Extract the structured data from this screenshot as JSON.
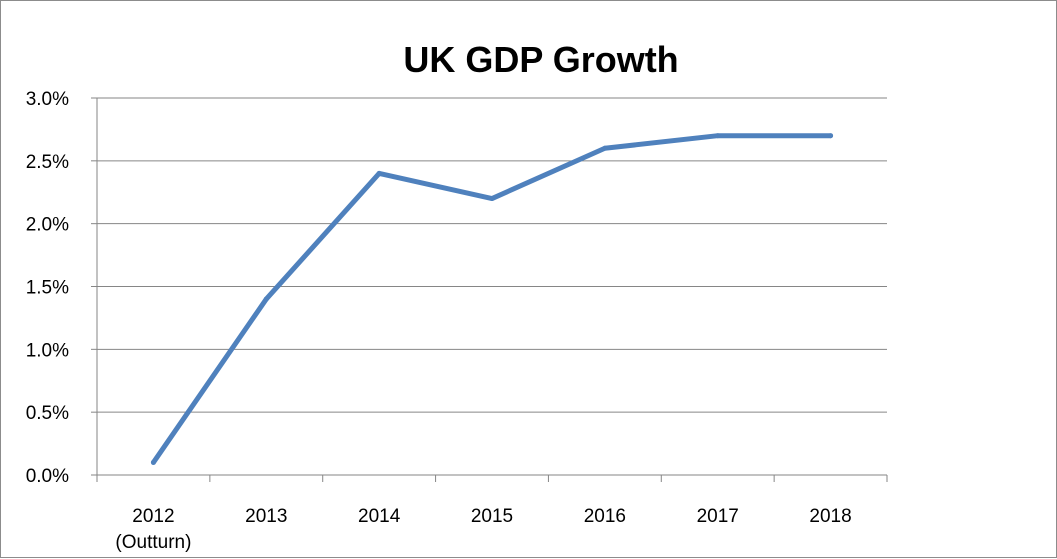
{
  "chart_data": {
    "type": "line",
    "title": "UK GDP Growth",
    "xlabel": "",
    "ylabel": "",
    "categories": [
      [
        "2012",
        "(Outturn)"
      ],
      [
        "2013"
      ],
      [
        "2014"
      ],
      [
        "2015"
      ],
      [
        "2016"
      ],
      [
        "2017"
      ],
      [
        "2018"
      ]
    ],
    "series": [
      {
        "values": [
          0.1,
          1.4,
          2.4,
          2.2,
          2.6,
          2.7,
          2.7
        ],
        "color": "#4f81bd"
      }
    ],
    "y_ticks": [
      {
        "value": 0.0,
        "label": "0.0%"
      },
      {
        "value": 0.5,
        "label": "0.5%"
      },
      {
        "value": 1.0,
        "label": "1.0%"
      },
      {
        "value": 1.5,
        "label": "1.5%"
      },
      {
        "value": 2.0,
        "label": "2.0%"
      },
      {
        "value": 2.5,
        "label": "2.5%"
      },
      {
        "value": 3.0,
        "label": "3.0%"
      }
    ],
    "ylim": [
      0,
      3.0
    ],
    "grid": "horizontal",
    "legend": "none",
    "gridline_color": "#868686",
    "axis_color": "#868686"
  }
}
